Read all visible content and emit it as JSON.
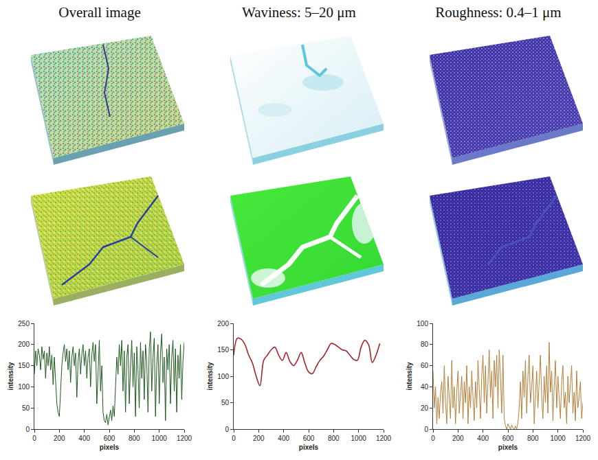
{
  "header": {
    "columns": [
      "Overall image",
      "Waviness: 5–20 μm",
      "Roughness: 0.4–1 μm"
    ]
  },
  "chart_data": [
    {
      "type": "line",
      "xlabel": "pixels",
      "ylabel": "intensity",
      "x": [
        0,
        10,
        20,
        30,
        40,
        50,
        60,
        70,
        80,
        90,
        100,
        110,
        120,
        130,
        140,
        150,
        160,
        170,
        180,
        190,
        200,
        210,
        220,
        230,
        240,
        250,
        260,
        270,
        280,
        290,
        300,
        310,
        320,
        330,
        340,
        350,
        360,
        370,
        380,
        390,
        400,
        410,
        420,
        430,
        440,
        450,
        460,
        470,
        480,
        490,
        500,
        510,
        520,
        530,
        540,
        550,
        560,
        570,
        580,
        590,
        600,
        610,
        620,
        630,
        640,
        650,
        660,
        670,
        680,
        690,
        700,
        710,
        720,
        730,
        740,
        750,
        760,
        770,
        780,
        790,
        800,
        810,
        820,
        830,
        840,
        850,
        860,
        870,
        880,
        890,
        900,
        910,
        920,
        930,
        940,
        950,
        960,
        970,
        980,
        990,
        1000,
        1010,
        1020,
        1030,
        1040,
        1050,
        1060,
        1070,
        1080,
        1090,
        1100,
        1110,
        1120,
        1130,
        1140,
        1150,
        1160,
        1170,
        1180,
        1190,
        1200
      ],
      "series": [
        {
          "color": "#1e5a1e",
          "line_style": "solid",
          "values": [
            130,
            185,
            150,
            190,
            175,
            140,
            195,
            165,
            185,
            120,
            180,
            150,
            195,
            140,
            175,
            105,
            170,
            120,
            60,
            40,
            30,
            90,
            150,
            180,
            200,
            160,
            190,
            140,
            185,
            110,
            170,
            195,
            150,
            180,
            75,
            160,
            190,
            130,
            175,
            200,
            150,
            185,
            120,
            170,
            190,
            100,
            175,
            205,
            160,
            200,
            60,
            130,
            210,
            90,
            150,
            40,
            20,
            15,
            35,
            10,
            25,
            45,
            20,
            55,
            30,
            110,
            170,
            130,
            200,
            150,
            210,
            90,
            185,
            40,
            170,
            200,
            60,
            150,
            210,
            100,
            180,
            30,
            195,
            140,
            50,
            205,
            120,
            185,
            70,
            200,
            160,
            40,
            190,
            230,
            90,
            170,
            215,
            30,
            150,
            200,
            60,
            180,
            225,
            110,
            170,
            20,
            190,
            140,
            200,
            60,
            170,
            210,
            90,
            190,
            40,
            175,
            120,
            200,
            70,
            160,
            205
          ]
        }
      ],
      "xlim": [
        0,
        1200
      ],
      "xticks": [
        0,
        200,
        400,
        600,
        800,
        1000,
        1200
      ],
      "ylim": [
        0,
        250
      ],
      "yticks": [
        0,
        50,
        100,
        150,
        200,
        250
      ],
      "grid": false
    },
    {
      "type": "line",
      "xlabel": "pixels",
      "ylabel": "intensity",
      "x": [
        0,
        30,
        60,
        90,
        120,
        150,
        180,
        210,
        240,
        270,
        300,
        330,
        360,
        390,
        420,
        450,
        480,
        510,
        540,
        570,
        600,
        630,
        660,
        690,
        720,
        750,
        780,
        810,
        840,
        870,
        900,
        930,
        960,
        990,
        1020,
        1050,
        1080,
        1110,
        1140,
        1170
      ],
      "series": [
        {
          "color": "#a3232a",
          "line_style": "spline",
          "values": [
            140,
            172,
            170,
            160,
            140,
            125,
            100,
            82,
            130,
            140,
            150,
            155,
            140,
            130,
            145,
            128,
            120,
            130,
            145,
            125,
            108,
            105,
            118,
            130,
            138,
            150,
            162,
            160,
            155,
            150,
            148,
            140,
            132,
            130,
            155,
            168,
            160,
            126,
            140,
            162
          ]
        }
      ],
      "xlim": [
        0,
        1200
      ],
      "xticks": [
        0,
        200,
        400,
        600,
        800,
        1000,
        1200
      ],
      "ylim": [
        0,
        200
      ],
      "yticks": [
        0,
        50,
        100,
        150,
        200
      ],
      "grid": false
    },
    {
      "type": "line",
      "xlabel": "pixels",
      "ylabel": "intensity",
      "x": [
        0,
        10,
        20,
        30,
        40,
        50,
        60,
        70,
        80,
        90,
        100,
        110,
        120,
        130,
        140,
        150,
        160,
        170,
        180,
        190,
        200,
        210,
        220,
        230,
        240,
        250,
        260,
        270,
        280,
        290,
        300,
        310,
        320,
        330,
        340,
        350,
        360,
        370,
        380,
        390,
        400,
        410,
        420,
        430,
        440,
        450,
        460,
        470,
        480,
        490,
        500,
        510,
        520,
        530,
        540,
        550,
        560,
        570,
        580,
        590,
        600,
        610,
        620,
        630,
        640,
        650,
        660,
        670,
        680,
        690,
        700,
        710,
        720,
        730,
        740,
        750,
        760,
        770,
        780,
        790,
        800,
        810,
        820,
        830,
        840,
        850,
        860,
        870,
        880,
        890,
        900,
        910,
        920,
        930,
        940,
        950,
        960,
        970,
        980,
        990,
        1000,
        1010,
        1020,
        1030,
        1040,
        1050,
        1060,
        1070,
        1080,
        1090,
        1100,
        1110,
        1120,
        1130,
        1140,
        1150,
        1160,
        1170,
        1180,
        1190,
        1200
      ],
      "series": [
        {
          "color": "#b3803c",
          "line_style": "solid",
          "values": [
            55,
            20,
            40,
            5,
            30,
            10,
            35,
            45,
            15,
            60,
            25,
            5,
            50,
            30,
            10,
            65,
            20,
            40,
            5,
            35,
            55,
            15,
            30,
            50,
            10,
            45,
            25,
            60,
            5,
            40,
            20,
            55,
            30,
            8,
            45,
            20,
            65,
            35,
            10,
            50,
            70,
            25,
            60,
            15,
            45,
            75,
            30,
            55,
            10,
            65,
            40,
            70,
            20,
            75,
            50,
            15,
            70,
            10,
            3,
            0,
            5,
            2,
            0,
            4,
            1,
            0,
            3,
            0,
            6,
            20,
            45,
            10,
            55,
            30,
            65,
            15,
            50,
            70,
            25,
            40,
            60,
            5,
            35,
            55,
            20,
            45,
            70,
            30,
            10,
            50,
            25,
            60,
            15,
            82,
            35,
            55,
            8,
            40,
            65,
            20,
            50,
            30,
            10,
            45,
            60,
            20,
            35,
            5,
            50,
            25,
            40,
            60,
            15,
            35,
            8,
            55,
            20,
            30,
            45,
            10,
            25
          ]
        }
      ],
      "xlim": [
        0,
        1200
      ],
      "xticks": [
        0,
        200,
        400,
        600,
        800,
        1000,
        1200
      ],
      "ylim": [
        0,
        100
      ],
      "yticks": [
        0,
        20,
        40,
        60,
        80,
        100
      ],
      "grid": false
    }
  ]
}
